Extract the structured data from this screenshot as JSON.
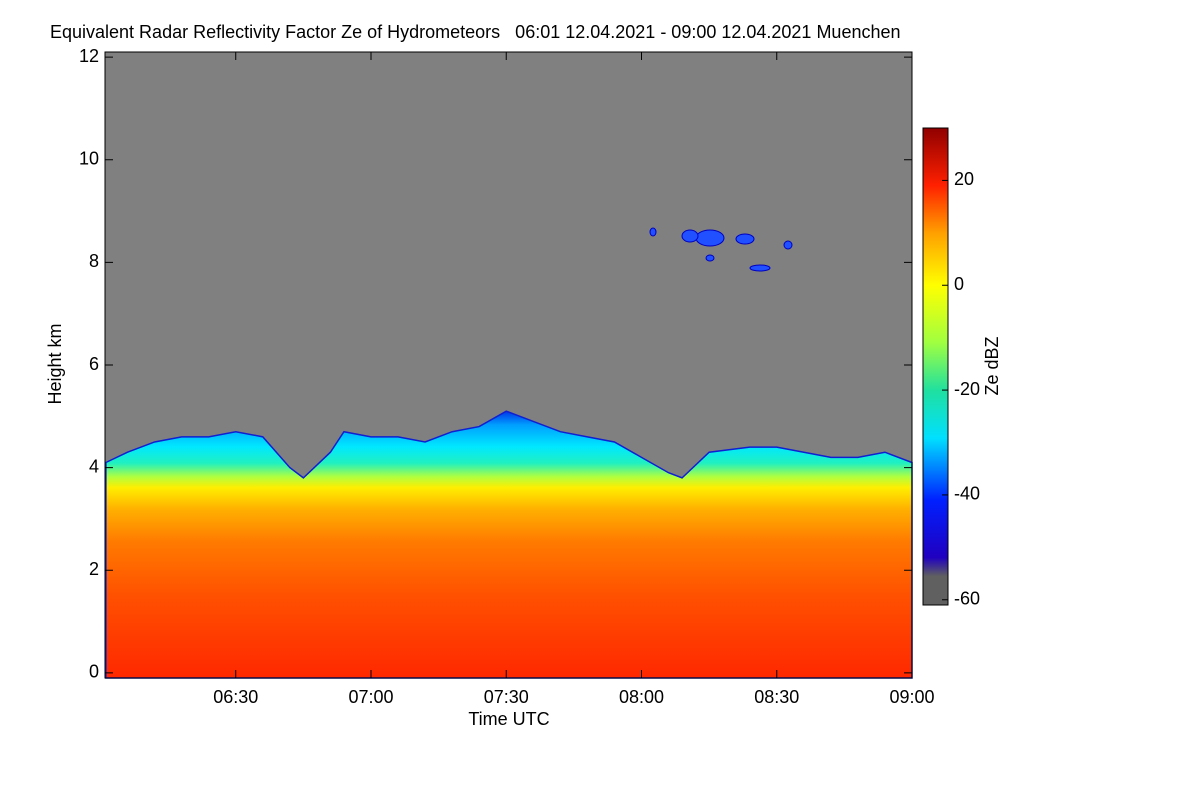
{
  "chart_data": {
    "type": "heatmap",
    "title": "Equivalent Radar Reflectivity Factor Ze of Hydrometeors   06:01 12.04.2021 - 09:00 12.04.2021 Muenchen",
    "xlabel": "Time UTC",
    "ylabel": "Height km",
    "colorbar_label": "Ze dBZ",
    "xlim": [
      6.0167,
      9.0
    ],
    "xticks": [
      {
        "value": 6.5,
        "label": "06:30"
      },
      {
        "value": 7.0,
        "label": "07:00"
      },
      {
        "value": 7.5,
        "label": "07:30"
      },
      {
        "value": 8.0,
        "label": "08:00"
      },
      {
        "value": 8.5,
        "label": "08:30"
      },
      {
        "value": 9.0,
        "label": "09:00"
      }
    ],
    "ylim": [
      -0.1,
      12.1
    ],
    "yticks": [
      0,
      2,
      4,
      6,
      8,
      10,
      12
    ],
    "clim": [
      -61,
      30
    ],
    "cticks": [
      20,
      0,
      -20,
      -40,
      -60
    ],
    "x": [
      6.02,
      6.1,
      6.2,
      6.3,
      6.4,
      6.5,
      6.6,
      6.7,
      6.75,
      6.85,
      6.9,
      7.0,
      7.1,
      7.2,
      7.3,
      7.4,
      7.5,
      7.6,
      7.7,
      7.8,
      7.9,
      8.0,
      8.1,
      8.15,
      8.25,
      8.4,
      8.5,
      8.6,
      8.7,
      8.8,
      8.9,
      9.0
    ],
    "series": [
      {
        "values": [
          4.1,
          4.3,
          4.5,
          4.6,
          4.6,
          4.7,
          4.6,
          4.0,
          3.8,
          4.3,
          4.7,
          4.6,
          4.6,
          4.5,
          4.7,
          4.8,
          5.1,
          4.9,
          4.7,
          4.6,
          4.5,
          4.2,
          3.9,
          3.8,
          4.3,
          4.4,
          4.4,
          4.3,
          4.2,
          4.2,
          4.3,
          4.1
        ]
      }
    ],
    "background_color": "#808080"
  }
}
